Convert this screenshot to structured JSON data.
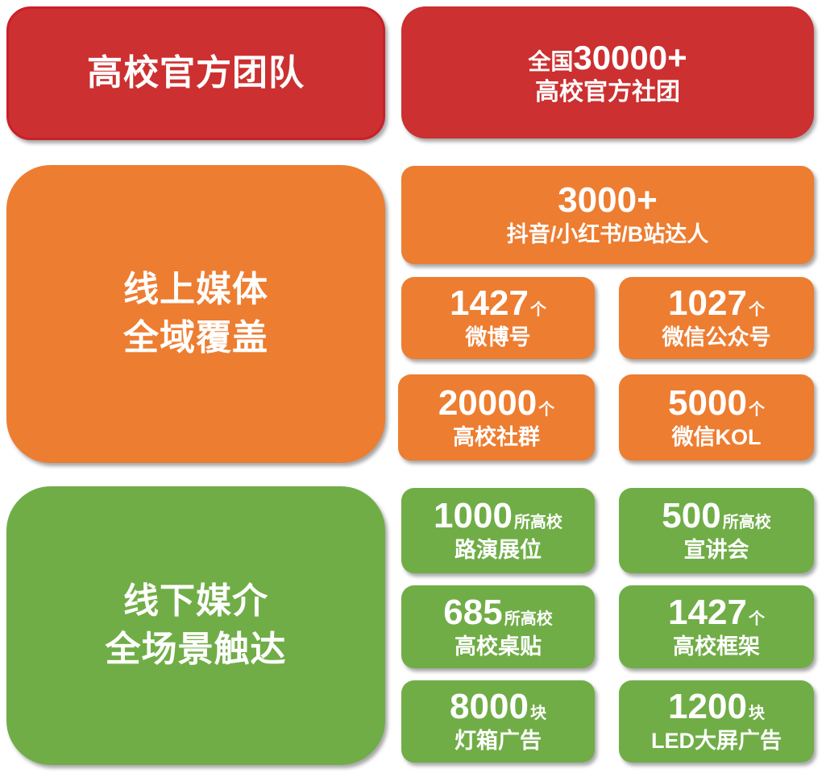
{
  "colors": {
    "red": "#cc3030",
    "orange": "#ed7d31",
    "green": "#70ad47"
  },
  "team": {
    "title": "高校官方团队",
    "line1_prefix": "全国",
    "line1_value": "30000+",
    "line2": "高校官方社团"
  },
  "online": {
    "title_lines": [
      "线上媒体",
      "全域覆盖"
    ],
    "top": {
      "value": "3000+",
      "label": "抖音/小红书/B站达人"
    },
    "cards": [
      {
        "value": "1427",
        "unit": "个",
        "label": "微博号"
      },
      {
        "value": "1027",
        "unit": "个",
        "label": "微信公众号"
      },
      {
        "value": "20000",
        "unit": "个",
        "label": "高校社群"
      },
      {
        "value": "5000",
        "unit": "个",
        "label": "微信KOL"
      }
    ]
  },
  "offline": {
    "title_lines": [
      "线下媒介",
      "全场景触达"
    ],
    "cards": [
      {
        "value": "1000",
        "unit": "所高校",
        "label": "路演展位"
      },
      {
        "value": "500",
        "unit": "所高校",
        "label": "宣讲会"
      },
      {
        "value": "685",
        "unit": "所高校",
        "label": "高校桌贴"
      },
      {
        "value": "1427",
        "unit": "个",
        "label": "高校框架"
      },
      {
        "value": "8000",
        "unit": "块",
        "label": "灯箱广告"
      },
      {
        "value": "1200",
        "unit": "块",
        "label": "LED大屏广告"
      }
    ]
  }
}
